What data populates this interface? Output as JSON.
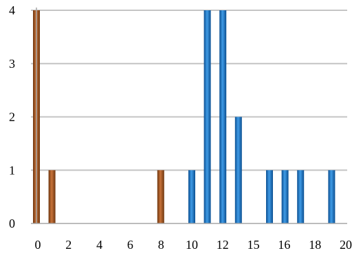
{
  "chart_data": {
    "type": "bar",
    "title": "",
    "xlabel": "",
    "ylabel": "",
    "grid": "horizontal",
    "xlim": [
      0,
      20
    ],
    "ylim": [
      0,
      4
    ],
    "xticks": [
      "0",
      "2",
      "4",
      "6",
      "8",
      "10",
      "12",
      "15",
      "16",
      "18",
      "20"
    ],
    "yticks": [
      "0",
      "1",
      "2",
      "3",
      "4"
    ],
    "series": [
      {
        "color": "#a0521c",
        "points": [
          {
            "x": 0,
            "y": 4
          },
          {
            "x": 1,
            "y": 1
          },
          {
            "x": 8,
            "y": 1
          }
        ]
      },
      {
        "color": "#1874c7",
        "points": [
          {
            "x": 10,
            "y": 1
          },
          {
            "x": 11,
            "y": 4
          },
          {
            "x": 12,
            "y": 4
          },
          {
            "x": 13,
            "y": 2
          },
          {
            "x": 15,
            "y": 1
          },
          {
            "x": 16,
            "y": 1
          },
          {
            "x": 17,
            "y": 1
          },
          {
            "x": 19,
            "y": 1
          }
        ]
      }
    ]
  }
}
